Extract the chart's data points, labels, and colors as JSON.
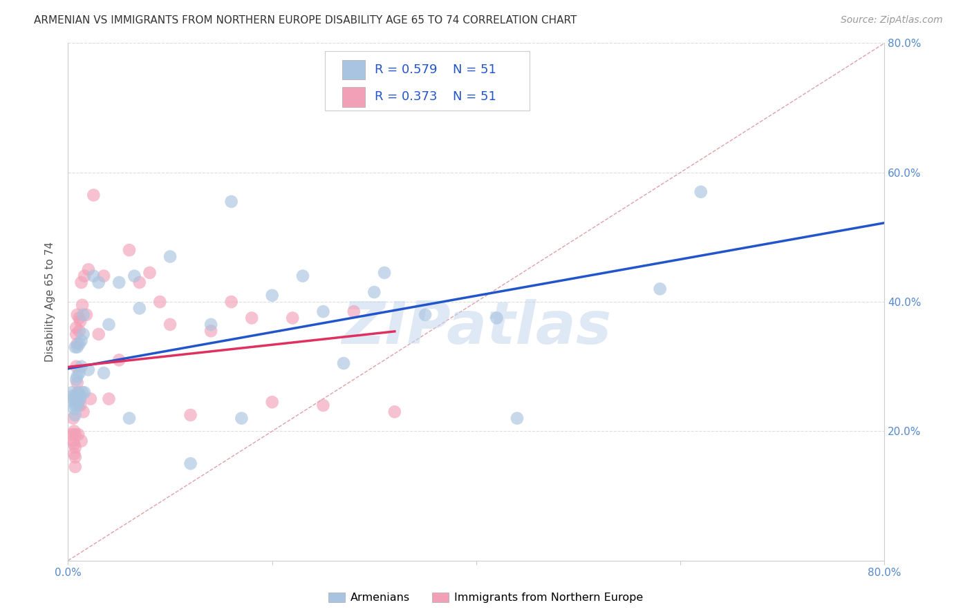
{
  "title": "ARMENIAN VS IMMIGRANTS FROM NORTHERN EUROPE DISABILITY AGE 65 TO 74 CORRELATION CHART",
  "source": "Source: ZipAtlas.com",
  "ylabel": "Disability Age 65 to 74",
  "R_armenian": 0.579,
  "N_armenian": 51,
  "R_immigrant": 0.373,
  "N_immigrant": 51,
  "legend_labels": [
    "Armenians",
    "Immigrants from Northern Europe"
  ],
  "xlim": [
    0.0,
    0.8
  ],
  "ylim": [
    0.0,
    0.8
  ],
  "color_armenian": "#a8c4e0",
  "color_immigrant": "#f2a0b8",
  "line_color_armenian": "#2255cc",
  "line_color_immigrant": "#e03060",
  "legend_text_color": "#2255cc",
  "watermark": "ZIPatlas",
  "background_color": "#ffffff",
  "grid_color": "#dddddd",
  "title_color": "#333333",
  "armenian_x": [
    0.004,
    0.005,
    0.006,
    0.006,
    0.006,
    0.007,
    0.007,
    0.007,
    0.008,
    0.008,
    0.008,
    0.009,
    0.009,
    0.01,
    0.01,
    0.01,
    0.011,
    0.011,
    0.012,
    0.012,
    0.013,
    0.013,
    0.014,
    0.015,
    0.015,
    0.016,
    0.02,
    0.025,
    0.03,
    0.035,
    0.04,
    0.05,
    0.06,
    0.065,
    0.07,
    0.1,
    0.12,
    0.14,
    0.16,
    0.17,
    0.2,
    0.23,
    0.25,
    0.27,
    0.3,
    0.31,
    0.35,
    0.42,
    0.44,
    0.58,
    0.62
  ],
  "armenian_y": [
    0.26,
    0.255,
    0.245,
    0.235,
    0.25,
    0.24,
    0.225,
    0.33,
    0.28,
    0.255,
    0.245,
    0.33,
    0.285,
    0.26,
    0.25,
    0.24,
    0.335,
    0.29,
    0.255,
    0.25,
    0.34,
    0.3,
    0.26,
    0.38,
    0.35,
    0.26,
    0.295,
    0.44,
    0.43,
    0.29,
    0.365,
    0.43,
    0.22,
    0.44,
    0.39,
    0.47,
    0.15,
    0.365,
    0.555,
    0.22,
    0.41,
    0.44,
    0.385,
    0.305,
    0.415,
    0.445,
    0.38,
    0.375,
    0.22,
    0.42,
    0.57
  ],
  "immigrant_x": [
    0.004,
    0.005,
    0.005,
    0.006,
    0.006,
    0.006,
    0.007,
    0.007,
    0.007,
    0.007,
    0.008,
    0.008,
    0.008,
    0.008,
    0.009,
    0.009,
    0.009,
    0.01,
    0.01,
    0.01,
    0.011,
    0.011,
    0.012,
    0.012,
    0.013,
    0.013,
    0.014,
    0.015,
    0.016,
    0.018,
    0.02,
    0.022,
    0.025,
    0.03,
    0.035,
    0.04,
    0.05,
    0.06,
    0.07,
    0.08,
    0.09,
    0.1,
    0.12,
    0.14,
    0.16,
    0.18,
    0.2,
    0.22,
    0.25,
    0.28,
    0.32
  ],
  "immigrant_y": [
    0.195,
    0.185,
    0.22,
    0.2,
    0.18,
    0.165,
    0.195,
    0.175,
    0.16,
    0.145,
    0.36,
    0.35,
    0.3,
    0.255,
    0.38,
    0.335,
    0.275,
    0.26,
    0.245,
    0.195,
    0.375,
    0.355,
    0.37,
    0.24,
    0.185,
    0.43,
    0.395,
    0.23,
    0.44,
    0.38,
    0.45,
    0.25,
    0.565,
    0.35,
    0.44,
    0.25,
    0.31,
    0.48,
    0.43,
    0.445,
    0.4,
    0.365,
    0.225,
    0.355,
    0.4,
    0.375,
    0.245,
    0.375,
    0.24,
    0.385,
    0.23
  ]
}
